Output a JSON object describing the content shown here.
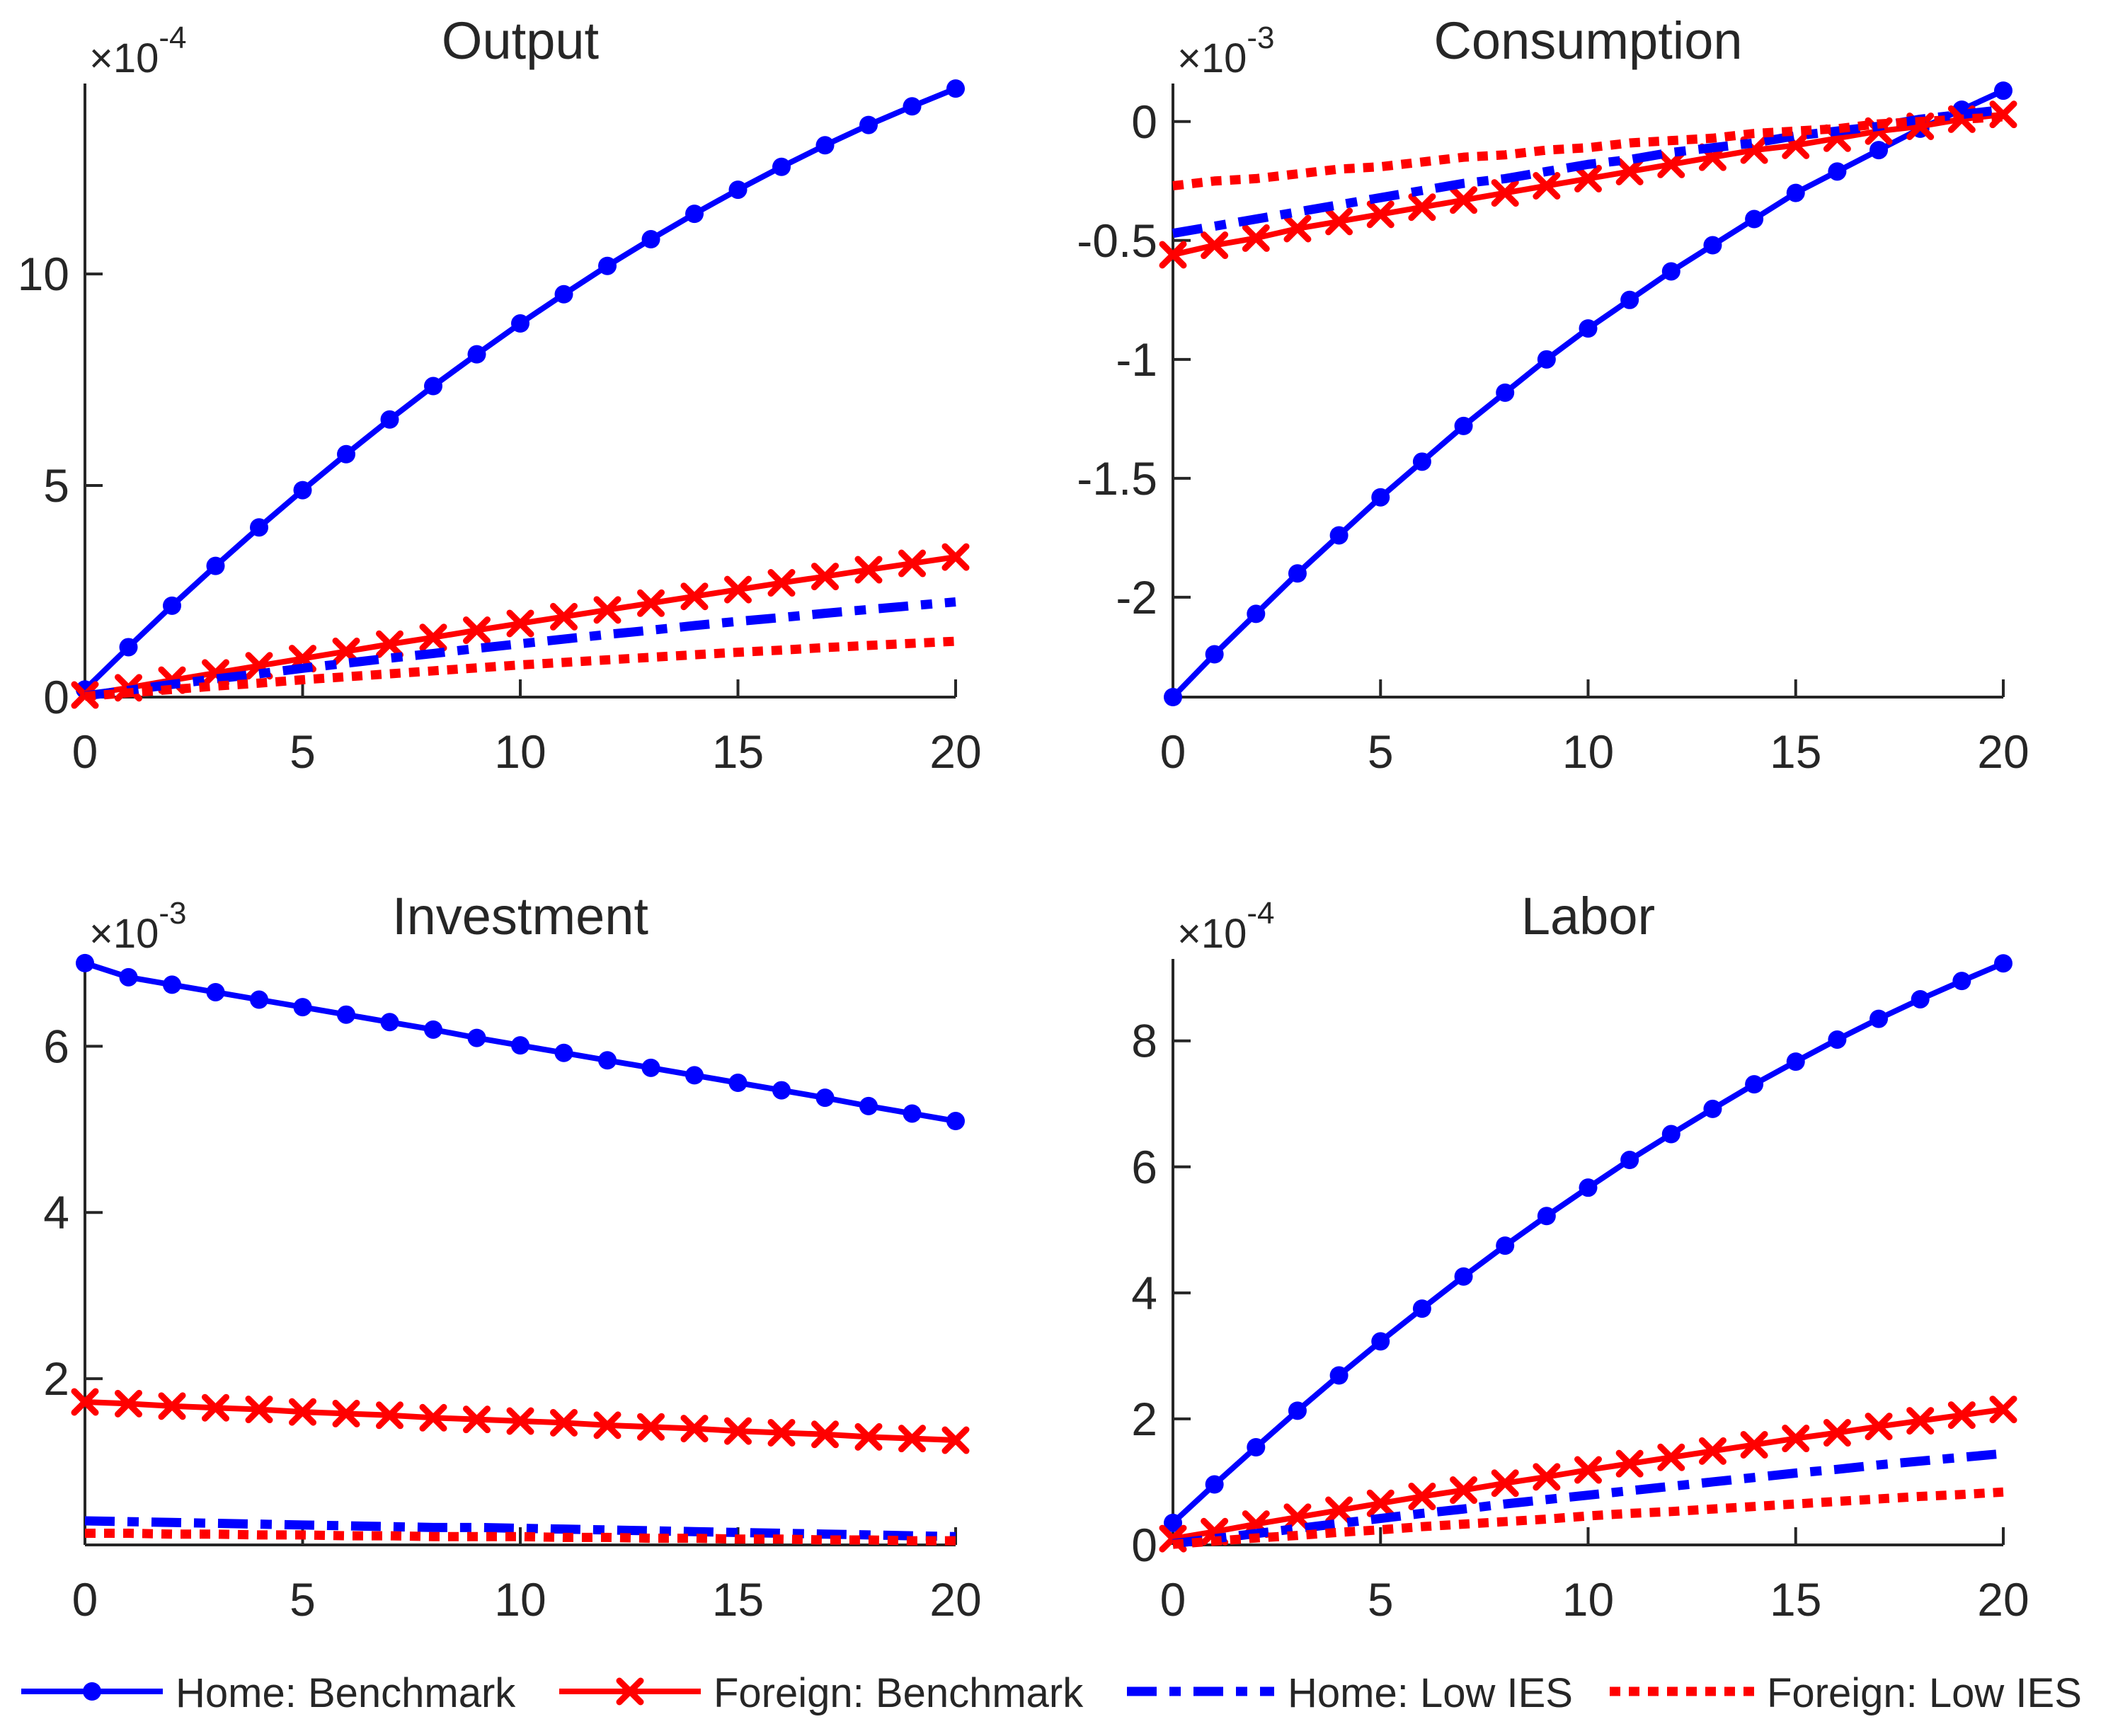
{
  "figure": {
    "background": "#ffffff",
    "axis_color": "#262626",
    "home_color": "#0000ff",
    "foreign_color": "#ff0000",
    "legend_position": "bottom",
    "legend": [
      {
        "label": "Home: Benchmark",
        "color": "#0000ff",
        "style": "solid",
        "marker": "circle"
      },
      {
        "label": "Foreign: Benchmark",
        "color": "#ff0000",
        "style": "solid",
        "marker": "x"
      },
      {
        "label": "Home: Low IES",
        "color": "#0000ff",
        "style": "dashdot",
        "marker": "none"
      },
      {
        "label": "Foreign: Low IES",
        "color": "#ff0000",
        "style": "dotted",
        "marker": "none"
      }
    ]
  },
  "chart_data": [
    {
      "type": "line",
      "title": "Output",
      "exponent_base": "×10",
      "exponent_power": "-4",
      "xlabel": "",
      "ylabel": "",
      "xlim": [
        0,
        20
      ],
      "ylim": [
        0,
        14.5
      ],
      "xticks": [
        0,
        5,
        10,
        15,
        20
      ],
      "yticks": [
        0,
        5,
        10
      ],
      "grid": false,
      "x": [
        0,
        1,
        2,
        3,
        4,
        5,
        6,
        7,
        8,
        9,
        10,
        11,
        12,
        13,
        14,
        15,
        16,
        17,
        18,
        19,
        20
      ],
      "series": [
        {
          "name": "Home: Benchmark",
          "values": [
            0.18,
            1.18,
            2.16,
            3.1,
            4.01,
            4.89,
            5.74,
            6.56,
            7.35,
            8.1,
            8.83,
            9.52,
            10.19,
            10.82,
            11.42,
            11.99,
            12.53,
            13.04,
            13.52,
            13.96,
            14.38
          ]
        },
        {
          "name": "Foreign: Benchmark",
          "values": [
            0.05,
            0.22,
            0.4,
            0.57,
            0.74,
            0.91,
            1.08,
            1.25,
            1.41,
            1.58,
            1.74,
            1.9,
            2.06,
            2.22,
            2.38,
            2.54,
            2.7,
            2.85,
            3.01,
            3.16,
            3.31
          ]
        },
        {
          "name": "Home: Low IES",
          "values": [
            0.03,
            0.16,
            0.3,
            0.43,
            0.55,
            0.68,
            0.8,
            0.92,
            1.03,
            1.15,
            1.26,
            1.37,
            1.48,
            1.58,
            1.69,
            1.79,
            1.88,
            1.98,
            2.07,
            2.16,
            2.25
          ]
        },
        {
          "name": "Foreign: Low IES",
          "values": [
            0.02,
            0.1,
            0.18,
            0.26,
            0.33,
            0.41,
            0.48,
            0.55,
            0.62,
            0.69,
            0.76,
            0.82,
            0.88,
            0.94,
            1.0,
            1.06,
            1.11,
            1.17,
            1.22,
            1.27,
            1.32
          ]
        }
      ]
    },
    {
      "type": "line",
      "title": "Consumption",
      "exponent_base": "×10",
      "exponent_power": "-3",
      "xlabel": "",
      "ylabel": "",
      "xlim": [
        0,
        20
      ],
      "ylim": [
        -2.42,
        0.16
      ],
      "xticks": [
        0,
        5,
        10,
        15,
        20
      ],
      "yticks": [
        -2,
        -1.5,
        -1,
        -0.5,
        0
      ],
      "grid": false,
      "x": [
        0,
        1,
        2,
        3,
        4,
        5,
        6,
        7,
        8,
        9,
        10,
        11,
        12,
        13,
        14,
        15,
        16,
        17,
        18,
        19,
        20
      ],
      "series": [
        {
          "name": "Home: Benchmark",
          "values": [
            -2.42,
            -2.24,
            -2.07,
            -1.9,
            -1.74,
            -1.58,
            -1.43,
            -1.28,
            -1.14,
            -1.0,
            -0.87,
            -0.75,
            -0.63,
            -0.52,
            -0.41,
            -0.3,
            -0.21,
            -0.12,
            -0.03,
            0.05,
            0.13
          ]
        },
        {
          "name": "Foreign: Benchmark",
          "values": [
            -0.56,
            -0.52,
            -0.49,
            -0.45,
            -0.42,
            -0.39,
            -0.36,
            -0.33,
            -0.3,
            -0.27,
            -0.24,
            -0.21,
            -0.18,
            -0.15,
            -0.12,
            -0.1,
            -0.07,
            -0.04,
            -0.02,
            0.01,
            0.03
          ]
        },
        {
          "name": "Home: Low IES",
          "values": [
            -0.47,
            -0.44,
            -0.41,
            -0.38,
            -0.35,
            -0.32,
            -0.29,
            -0.26,
            -0.24,
            -0.21,
            -0.18,
            -0.16,
            -0.13,
            -0.11,
            -0.09,
            -0.06,
            -0.04,
            -0.02,
            0.01,
            0.03,
            0.05
          ]
        },
        {
          "name": "Foreign: Low IES",
          "values": [
            -0.27,
            -0.25,
            -0.24,
            -0.22,
            -0.2,
            -0.19,
            -0.17,
            -0.15,
            -0.14,
            -0.12,
            -0.11,
            -0.09,
            -0.08,
            -0.07,
            -0.05,
            -0.04,
            -0.03,
            -0.01,
            0.0,
            0.01,
            0.02
          ]
        }
      ]
    },
    {
      "type": "line",
      "title": "Investment",
      "exponent_base": "×10",
      "exponent_power": "-3",
      "xlabel": "",
      "ylabel": "",
      "xlim": [
        0,
        20
      ],
      "ylim": [
        0,
        7.05
      ],
      "xticks": [
        0,
        5,
        10,
        15,
        20
      ],
      "yticks": [
        2,
        4,
        6
      ],
      "grid": false,
      "x": [
        0,
        1,
        2,
        3,
        4,
        5,
        6,
        7,
        8,
        9,
        10,
        11,
        12,
        13,
        14,
        15,
        16,
        17,
        18,
        19,
        20
      ],
      "series": [
        {
          "name": "Home: Benchmark",
          "values": [
            7.0,
            6.83,
            6.74,
            6.65,
            6.56,
            6.47,
            6.38,
            6.29,
            6.2,
            6.1,
            6.01,
            5.92,
            5.83,
            5.74,
            5.65,
            5.56,
            5.47,
            5.38,
            5.28,
            5.19,
            5.1
          ]
        },
        {
          "name": "Foreign: Benchmark",
          "values": [
            1.72,
            1.7,
            1.67,
            1.65,
            1.63,
            1.6,
            1.58,
            1.56,
            1.53,
            1.51,
            1.49,
            1.47,
            1.44,
            1.42,
            1.4,
            1.37,
            1.35,
            1.33,
            1.3,
            1.28,
            1.26
          ]
        },
        {
          "name": "Home: Low IES",
          "values": [
            0.29,
            0.28,
            0.27,
            0.26,
            0.25,
            0.24,
            0.23,
            0.22,
            0.21,
            0.21,
            0.2,
            0.19,
            0.18,
            0.17,
            0.16,
            0.15,
            0.14,
            0.13,
            0.12,
            0.11,
            0.1
          ]
        },
        {
          "name": "Foreign: Low IES",
          "values": [
            0.14,
            0.14,
            0.13,
            0.13,
            0.12,
            0.12,
            0.11,
            0.11,
            0.1,
            0.1,
            0.1,
            0.09,
            0.09,
            0.08,
            0.08,
            0.07,
            0.07,
            0.06,
            0.06,
            0.05,
            0.05
          ]
        }
      ]
    },
    {
      "type": "line",
      "title": "Labor",
      "exponent_base": "×10",
      "exponent_power": "-4",
      "xlabel": "",
      "ylabel": "",
      "xlim": [
        0,
        20
      ],
      "ylim": [
        0,
        9.3
      ],
      "xticks": [
        0,
        5,
        10,
        15,
        20
      ],
      "yticks": [
        0,
        2,
        4,
        6,
        8
      ],
      "grid": false,
      "x": [
        0,
        1,
        2,
        3,
        4,
        5,
        6,
        7,
        8,
        9,
        10,
        11,
        12,
        13,
        14,
        15,
        16,
        17,
        18,
        19,
        20
      ],
      "series": [
        {
          "name": "Home: Benchmark",
          "values": [
            0.35,
            0.96,
            1.55,
            2.13,
            2.69,
            3.23,
            3.75,
            4.26,
            4.75,
            5.22,
            5.67,
            6.11,
            6.52,
            6.92,
            7.31,
            7.67,
            8.02,
            8.35,
            8.66,
            8.95,
            9.23
          ]
        },
        {
          "name": "Foreign: Benchmark",
          "values": [
            0.1,
            0.21,
            0.33,
            0.44,
            0.55,
            0.66,
            0.77,
            0.87,
            0.98,
            1.08,
            1.19,
            1.29,
            1.39,
            1.49,
            1.59,
            1.69,
            1.78,
            1.88,
            1.97,
            2.06,
            2.15
          ]
        },
        {
          "name": "Home: Low IES",
          "values": [
            0.02,
            0.1,
            0.18,
            0.26,
            0.34,
            0.42,
            0.5,
            0.57,
            0.65,
            0.72,
            0.79,
            0.86,
            0.93,
            1.0,
            1.07,
            1.14,
            1.2,
            1.27,
            1.33,
            1.39,
            1.45
          ]
        },
        {
          "name": "Foreign: Low IES",
          "values": [
            0.01,
            0.06,
            0.11,
            0.15,
            0.2,
            0.24,
            0.29,
            0.33,
            0.37,
            0.41,
            0.46,
            0.5,
            0.53,
            0.57,
            0.61,
            0.65,
            0.69,
            0.73,
            0.77,
            0.8,
            0.84
          ]
        }
      ]
    }
  ]
}
